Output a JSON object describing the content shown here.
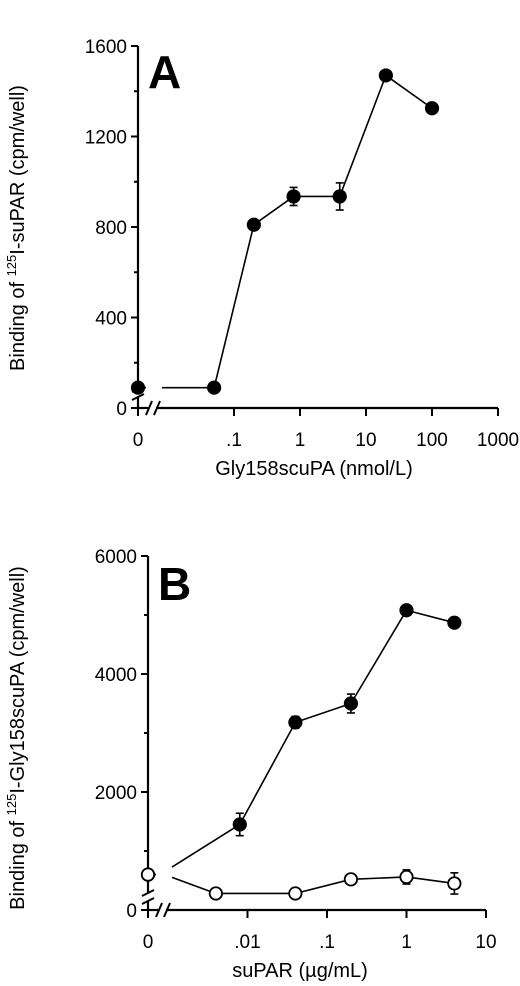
{
  "chart_data": [
    {
      "type": "line",
      "panel_label": "A",
      "xlabel": "Gly158scuPA (nmol/L)",
      "ylabel_pre": "Binding of ",
      "ylabel_sup": "125",
      "ylabel_post": "I-suPAR (cpm/well)",
      "x_scale": "log",
      "x_axis_break": true,
      "y_axis_break": true,
      "xlim": [
        0.01,
        1000
      ],
      "ylim": [
        0,
        1600
      ],
      "x_ticks": [
        0,
        0.1,
        1,
        10,
        100,
        1000
      ],
      "x_tick_labels": [
        "0",
        ".1",
        "1",
        "10",
        "100",
        "1000"
      ],
      "y_ticks": [
        0,
        400,
        800,
        1200,
        1600
      ],
      "y_tick_labels": [
        "0",
        "400",
        "800",
        "1200",
        "1600"
      ],
      "series": [
        {
          "marker": "filled-circle",
          "x": [
            0,
            0.05,
            0.2,
            0.8,
            4,
            20,
            100
          ],
          "y": [
            90,
            90,
            810,
            935,
            935,
            1470,
            1325
          ],
          "err": [
            0,
            0,
            15,
            40,
            60,
            15,
            20
          ]
        }
      ]
    },
    {
      "type": "line",
      "panel_label": "B",
      "xlabel": "suPAR (µg/mL)",
      "ylabel_pre": "Binding of ",
      "ylabel_sup": "125",
      "ylabel_post": "I-Gly158scuPA (cpm/well)",
      "x_scale": "log",
      "x_axis_break": true,
      "y_axis_break": true,
      "xlim": [
        0.001,
        10
      ],
      "ylim": [
        0,
        6000
      ],
      "x_ticks": [
        0,
        0.01,
        0.1,
        1,
        10
      ],
      "x_tick_labels": [
        "0",
        ".01",
        ".1",
        "1",
        "10"
      ],
      "y_ticks": [
        0,
        2000,
        4000,
        6000
      ],
      "y_tick_labels": [
        "0",
        "2000",
        "4000",
        "6000"
      ],
      "series": [
        {
          "marker": "filled-circle",
          "x": [
            0,
            0.008,
            0.04,
            0.2,
            1,
            4
          ],
          "y": [
            600,
            1450,
            3180,
            3500,
            5080,
            4870
          ],
          "err": [
            0,
            190,
            100,
            160,
            50,
            40
          ]
        },
        {
          "marker": "open-circle",
          "x": [
            0,
            0.004,
            0.04,
            0.2,
            1,
            4
          ],
          "y": [
            600,
            280,
            280,
            520,
            560,
            450
          ],
          "err": [
            0,
            0,
            0,
            60,
            120,
            180
          ]
        }
      ]
    }
  ]
}
